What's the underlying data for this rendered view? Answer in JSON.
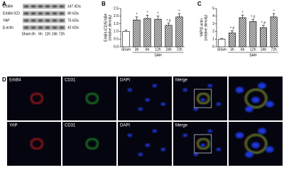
{
  "blot": {
    "panel": "A",
    "rows": [
      {
        "label": "ErbB4",
        "size": "147 kDa"
      },
      {
        "label": "ErbB4 ICD",
        "size": "80 kDa"
      },
      {
        "label": "YAP",
        "size": "75 kDa"
      },
      {
        "label": "β-actin",
        "size": "42 kDa"
      }
    ],
    "lanes": [
      "Sham",
      "3h",
      "6h",
      "12h",
      "24h",
      "72h"
    ]
  },
  "chart_data": [
    {
      "type": "bar",
      "panel": "B",
      "ylabel": [
        "ErbB4-ICD/ErbB4",
        "(relative density)"
      ],
      "categories": [
        "Sham",
        "3h",
        "6h",
        "12h",
        "24h",
        "72h"
      ],
      "group_label": "SAH",
      "values": [
        1.0,
        1.75,
        1.85,
        1.8,
        1.4,
        1.95
      ],
      "errors": [
        0.08,
        0.2,
        0.22,
        0.2,
        0.15,
        0.22
      ],
      "annotations": [
        null,
        "*",
        "*",
        "*",
        "* #",
        "*"
      ],
      "ylim": [
        0,
        2.5
      ],
      "yticks": [
        {
          "value": 0,
          "label": "0.0"
        },
        0.5,
        {
          "value": 1,
          "label": "1.0"
        },
        1.5,
        {
          "value": 2,
          "label": "2.0"
        },
        2.5
      ]
    },
    {
      "type": "bar",
      "panel": "C",
      "ylabel": [
        "YAP/β-actin",
        "(relative density)"
      ],
      "categories": [
        "Sham",
        "3h",
        "6h",
        "12h",
        "24h",
        "72h"
      ],
      "group_label": "SAH",
      "values": [
        1.0,
        1.8,
        3.8,
        3.3,
        2.5,
        3.9
      ],
      "errors": [
        0.1,
        0.3,
        0.35,
        0.3,
        0.3,
        0.45
      ],
      "annotations": [
        null,
        "* #",
        "*",
        "* #",
        "* #",
        "*"
      ],
      "ylim": [
        0,
        5
      ],
      "yticks": [
        0,
        1,
        2,
        3,
        4,
        5
      ]
    }
  ],
  "micrographs": {
    "panel": "D",
    "rows": [
      [
        "ErbB4",
        "CD31",
        "DAPI",
        "Merge"
      ],
      [
        "YAP",
        "CD31",
        "DAPI",
        "Merge"
      ]
    ]
  }
}
